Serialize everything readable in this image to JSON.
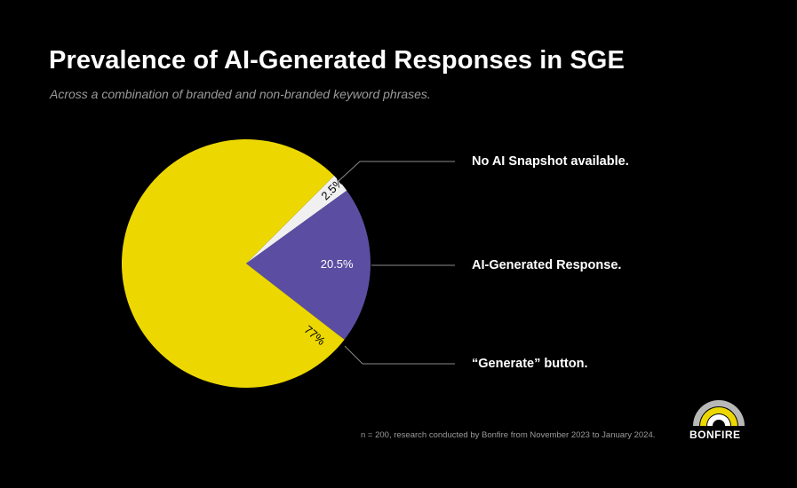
{
  "header": {
    "title": "Prevalence of AI-Generated Responses in SGE",
    "subtitle": "Across a combination of branded and non-branded keyword phrases."
  },
  "chart_data": {
    "type": "pie",
    "title": "Prevalence of AI-Generated Responses in SGE",
    "slices": [
      {
        "label": "No AI Snapshot available.",
        "value": 2.5,
        "display": "2.5%",
        "color": "#f0f0f0",
        "label_color": "#000000"
      },
      {
        "label": "AI-Generated Response.",
        "value": 20.5,
        "display": "20.5%",
        "color": "#5b4ea2",
        "label_color": "#ffffff"
      },
      {
        "label": "“Generate” button.",
        "value": 77,
        "display": "77%",
        "color": "#ecd800",
        "label_color": "#000000"
      }
    ]
  },
  "footer": {
    "note": "n = 200, research conducted by Bonfire from November 2023 to January 2024.",
    "brand": "BONFIRE"
  },
  "colors": {
    "background": "#000000",
    "logo_outer": "#ecd800",
    "logo_inner": "#b8b8b8",
    "leader_line": "#8a8a8a"
  }
}
